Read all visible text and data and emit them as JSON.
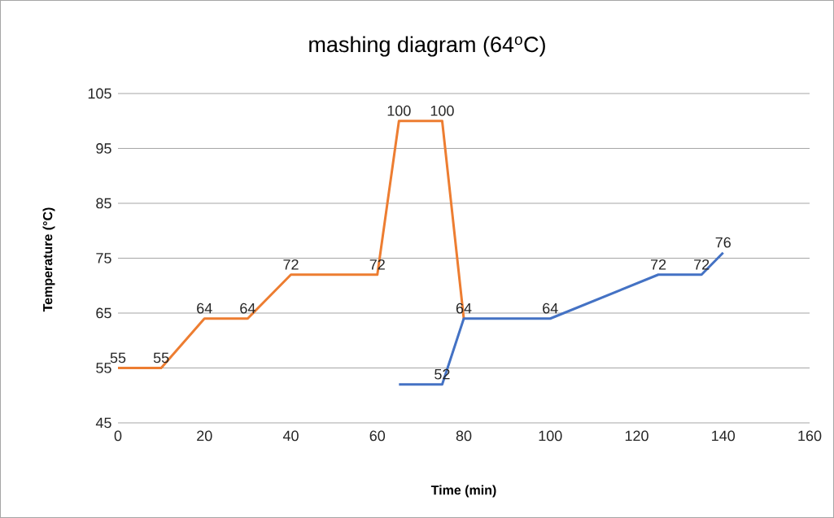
{
  "chart_data": {
    "type": "line",
    "title": "mashing diagram (64$^{o}$C)",
    "xlabel": "Time (min)",
    "ylabel": "Temperature (°C)",
    "xlim": [
      0,
      160
    ],
    "xticks": [
      0,
      20,
      40,
      60,
      80,
      100,
      120,
      140,
      160
    ],
    "ylim": [
      45,
      105
    ],
    "yticks": [
      45,
      55,
      65,
      75,
      85,
      95,
      105
    ],
    "grid": "y",
    "series": [
      {
        "color": "#ed7d31",
        "x": [
          0,
          10,
          20,
          30,
          40,
          60,
          65,
          75,
          80
        ],
        "values": [
          55,
          55,
          64,
          64,
          72,
          72,
          100,
          100,
          64
        ],
        "value_labels": [
          "55",
          "55",
          "64",
          "64",
          "72",
          "72",
          "100",
          "100",
          null
        ]
      },
      {
        "color": "#4472c4",
        "x": [
          65,
          75,
          80,
          100,
          125,
          135,
          140
        ],
        "values": [
          52,
          52,
          64,
          64,
          72,
          72,
          76
        ],
        "value_labels": [
          null,
          "52",
          "64",
          "64",
          "72",
          "72",
          "76"
        ]
      }
    ]
  }
}
